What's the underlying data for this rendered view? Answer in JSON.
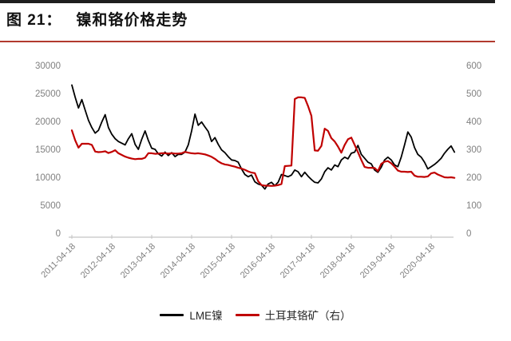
{
  "header": {
    "figure_label": "图 21：",
    "figure_title": "镍和铬价格走势"
  },
  "colors": {
    "top_bar": "#1f1f1f",
    "title_rule": "#b23a2e",
    "axis_text": "#808080",
    "axis_line": "#c4c4c4",
    "nickel_line": "#000000",
    "chrome_line": "#c00000"
  },
  "legend": {
    "items": [
      {
        "label": "LME镍",
        "color": "#000000"
      },
      {
        "label": "土耳其铬矿（右）",
        "color": "#c00000"
      }
    ]
  },
  "chart_data": {
    "type": "line",
    "title": "镍和铬价格走势",
    "grid": "off",
    "legend_position": "bottom-center",
    "x_start_month": "2011-04",
    "x_end_month": "2020-11",
    "x_tick_labels": [
      "2011-04-18",
      "2012-04-18",
      "2013-04-18",
      "2014-04-18",
      "2015-04-18",
      "2016-04-18",
      "2017-04-18",
      "2018-04-18",
      "2019-04-18",
      "2020-04-18"
    ],
    "left_axis": {
      "range": [
        0,
        30000
      ],
      "ticks": [
        0,
        5000,
        10000,
        15000,
        20000,
        25000,
        30000
      ]
    },
    "right_axis": {
      "range": [
        0,
        600
      ],
      "ticks": [
        0,
        100,
        200,
        300,
        400,
        500,
        600
      ]
    },
    "series": [
      {
        "name": "LME镍",
        "axis": "left",
        "color": "#000000",
        "monthly_values": [
          26500,
          24300,
          22400,
          23900,
          22000,
          20200,
          18900,
          17900,
          18400,
          19900,
          21200,
          18900,
          17700,
          16900,
          16400,
          16100,
          15800,
          16900,
          17800,
          15900,
          15000,
          16800,
          18300,
          16600,
          15200,
          15000,
          14200,
          13800,
          14500,
          13900,
          14400,
          13700,
          14100,
          14100,
          14500,
          15800,
          18300,
          21300,
          19300,
          19900,
          19000,
          18200,
          16400,
          17100,
          15900,
          14900,
          14400,
          13700,
          13100,
          13000,
          12700,
          11500,
          10500,
          10100,
          10400,
          9200,
          8800,
          8600,
          7900,
          8800,
          9100,
          8500,
          9100,
          10500,
          10300,
          10100,
          10400,
          11300,
          11000,
          10100,
          10900,
          10200,
          9600,
          9100,
          9000,
          9700,
          11000,
          11700,
          11300,
          12200,
          11900,
          13100,
          13600,
          13300,
          14300,
          14500,
          15700,
          14100,
          13400,
          12700,
          12400,
          11300,
          10900,
          11800,
          13100,
          13600,
          13100,
          12200,
          11900,
          13600,
          15800,
          18100,
          17200,
          15300,
          14100,
          13600,
          12700,
          11500,
          11900,
          12300,
          12800,
          13400,
          14300,
          15000,
          15600,
          14500
        ]
      },
      {
        "name": "土耳其铬矿（右）",
        "axis": "right",
        "color": "#c00000",
        "monthly_values": [
          368,
          332,
          306,
          320,
          320,
          320,
          316,
          292,
          290,
          291,
          293,
          287,
          291,
          297,
          286,
          280,
          274,
          270,
          267,
          265,
          266,
          266,
          270,
          286,
          286,
          284,
          285,
          286,
          286,
          285,
          286,
          285,
          285,
          286,
          291,
          288,
          286,
          285,
          286,
          284,
          282,
          278,
          273,
          266,
          257,
          250,
          246,
          244,
          241,
          238,
          234,
          231,
          227,
          221,
          217,
          215,
          186,
          172,
          170,
          170,
          169,
          170,
          172,
          176,
          240,
          241,
          242,
          480,
          486,
          486,
          484,
          455,
          420,
          296,
          295,
          312,
          374,
          366,
          340,
          328,
          310,
          288,
          316,
          336,
          342,
          316,
          290,
          262,
          237,
          234,
          234,
          233,
          222,
          248,
          256,
          258,
          250,
          238,
          224,
          220,
          220,
          219,
          220,
          206,
          202,
          202,
          201,
          203,
          214,
          217,
          210,
          205,
          200,
          199,
          200,
          198
        ]
      }
    ]
  }
}
